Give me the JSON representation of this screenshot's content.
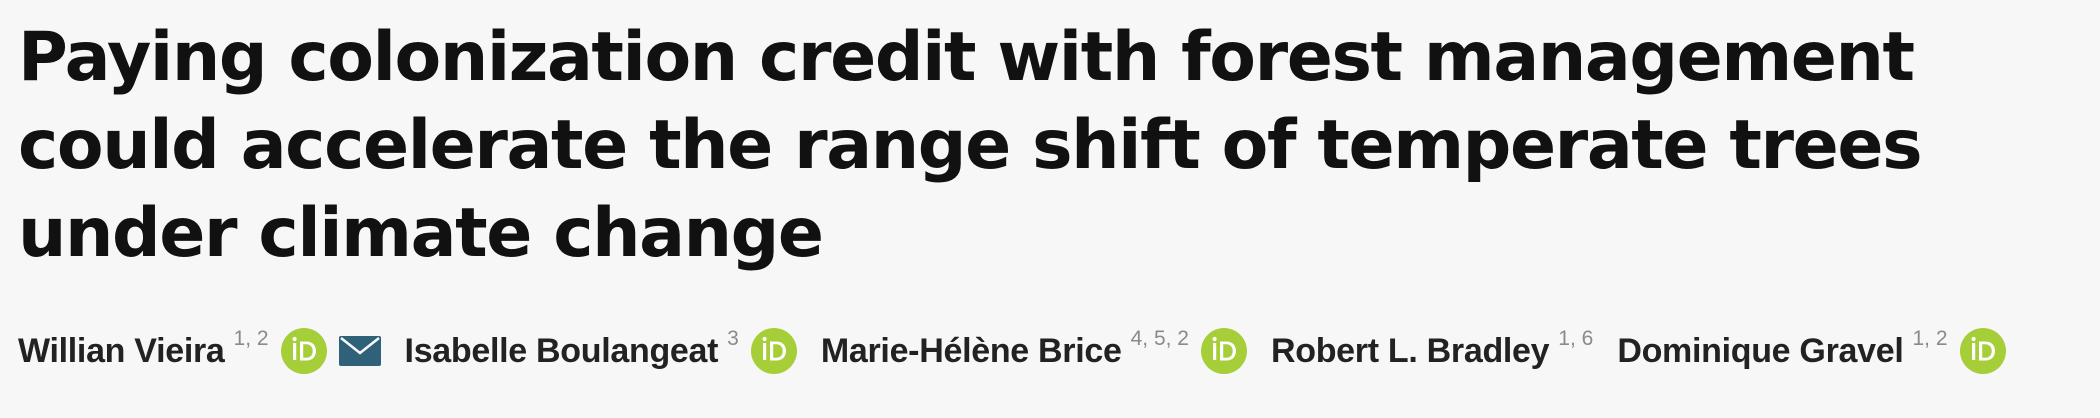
{
  "article": {
    "title": "Paying colonization credit with forest management could accelerate the range shift of temperate trees under climate change"
  },
  "authors": [
    {
      "name": "Willian Vieira",
      "affiliations": "1, 2",
      "orcid": true,
      "email": true
    },
    {
      "name": "Isabelle Boulangeat",
      "affiliations": "3",
      "orcid": true,
      "email": false
    },
    {
      "name": "Marie-Hélène Brice",
      "affiliations": "4, 5, 2",
      "orcid": true,
      "email": false
    },
    {
      "name": "Robert L. Bradley",
      "affiliations": "1, 6",
      "orcid": false,
      "email": false
    },
    {
      "name": "Dominique Gravel",
      "affiliations": "1, 2",
      "orcid": true,
      "email": false
    }
  ],
  "icons": {
    "orcid": "orcid-icon",
    "email": "mail-icon"
  },
  "colors": {
    "orcid_green": "#a6ce39",
    "mail_blue": "#2f6178",
    "affiliation_gray": "#8a8a8a",
    "background": "#f7f7f7"
  }
}
